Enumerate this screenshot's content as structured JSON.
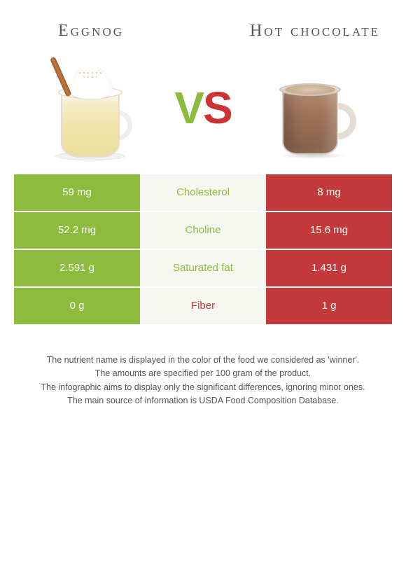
{
  "titles": {
    "left": "Eggnog",
    "right": "Hot chocolate"
  },
  "vs": {
    "v": "V",
    "s": "S"
  },
  "colors": {
    "left": "#8dbb3e",
    "right": "#c43a3a",
    "mid_bg": "#f7f7f2",
    "winner_left": "#8dbb3e",
    "winner_right": "#c43a3a"
  },
  "table": {
    "rows": [
      {
        "left": "59 mg",
        "label": "Cholesterol",
        "right": "8 mg",
        "winner": "left"
      },
      {
        "left": "52.2 mg",
        "label": "Choline",
        "right": "15.6 mg",
        "winner": "left"
      },
      {
        "left": "2.591 g",
        "label": "Saturated fat",
        "right": "1.431 g",
        "winner": "left"
      },
      {
        "left": "0 g",
        "label": "Fiber",
        "right": "1 g",
        "winner": "right"
      }
    ]
  },
  "footnotes": [
    "The nutrient name is displayed in the color of the food we considered as 'winner'.",
    "The amounts are specified per 100 gram of the product.",
    "The infographic aims to display only the significant differences, ignoring minor ones.",
    "The main source of information is USDA Food Composition Database."
  ]
}
